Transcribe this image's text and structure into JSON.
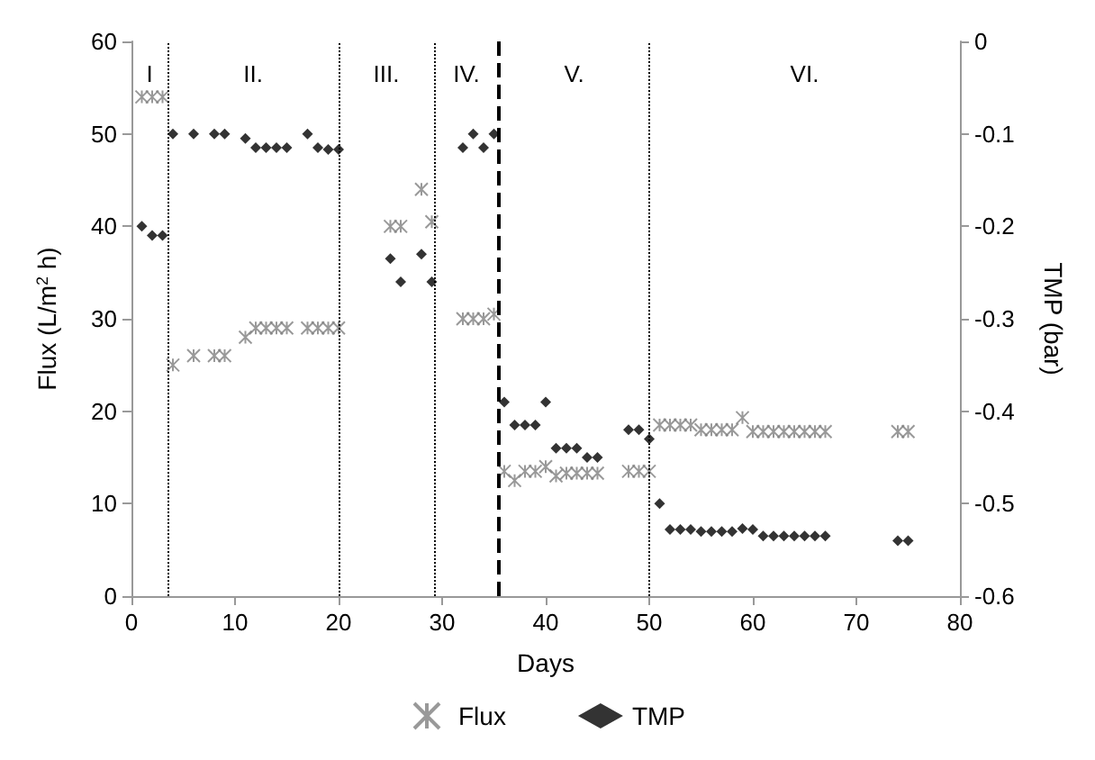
{
  "chart_data": {
    "type": "scatter",
    "xlabel": "Days",
    "ylabel": "Flux (L/m$^{2}$ h)",
    "y2label": "TMP (bar)",
    "xlim": [
      0,
      80
    ],
    "xticks": [
      0,
      10,
      20,
      30,
      40,
      50,
      60,
      70,
      80
    ],
    "ylim": [
      0,
      60
    ],
    "yticks": [
      0,
      10,
      20,
      30,
      40,
      50,
      60
    ],
    "y2lim": [
      -0.6,
      0
    ],
    "y2ticks": [
      -0.6,
      -0.5,
      -0.4,
      -0.3,
      -0.2,
      -0.1,
      0
    ],
    "legend": "bottom",
    "grid": false,
    "series": [
      {
        "name": "Flux",
        "color": "#808080",
        "marker": "cross",
        "x": [
          1,
          2,
          3,
          4,
          6,
          8,
          9,
          11,
          12,
          13,
          14,
          15,
          17,
          18,
          19,
          20,
          25,
          26,
          28,
          29,
          32,
          33,
          34,
          35,
          36,
          37,
          38,
          39,
          40,
          41,
          42,
          43,
          44,
          45,
          48,
          49,
          50,
          51,
          52,
          53,
          54,
          55,
          56,
          57,
          58,
          59,
          60,
          61,
          62,
          63,
          64,
          65,
          66,
          67,
          74,
          75
        ],
        "values": [
          54,
          54,
          54,
          25,
          26,
          26,
          26,
          28,
          29,
          29,
          29,
          29,
          29,
          29,
          29,
          29,
          40,
          40,
          44,
          40.5,
          30,
          30,
          30,
          30.5,
          13.5,
          12.5,
          13.5,
          13.5,
          14,
          13,
          13.3,
          13.3,
          13.3,
          13.3,
          13.5,
          13.5,
          13.5,
          18.5,
          18.5,
          18.5,
          18.5,
          18,
          18,
          18,
          18,
          19.3,
          17.8,
          17.8,
          17.8,
          17.8,
          17.8,
          17.8,
          17.8,
          17.8,
          17.8,
          17.8
        ]
      },
      {
        "name": "TMP",
        "color": "#000000",
        "marker": "diamond",
        "axis": "y2",
        "x": [
          1,
          2,
          3,
          4,
          6,
          8,
          9,
          11,
          12,
          13,
          14,
          15,
          17,
          18,
          19,
          20,
          25,
          26,
          28,
          29,
          32,
          33,
          34,
          35,
          36,
          37,
          38,
          39,
          40,
          41,
          42,
          43,
          44,
          45,
          48,
          49,
          50,
          51,
          52,
          53,
          54,
          55,
          56,
          57,
          58,
          59,
          60,
          61,
          62,
          63,
          64,
          65,
          66,
          67,
          74,
          75
        ],
        "values": [
          -0.2,
          -0.21,
          -0.21,
          -0.1,
          -0.1,
          -0.1,
          -0.1,
          -0.105,
          -0.115,
          -0.115,
          -0.115,
          -0.115,
          -0.1,
          -0.115,
          -0.117,
          -0.117,
          -0.235,
          -0.26,
          -0.23,
          -0.26,
          -0.115,
          -0.1,
          -0.115,
          -0.1,
          -0.39,
          -0.415,
          -0.415,
          -0.415,
          -0.39,
          -0.44,
          -0.44,
          -0.44,
          -0.45,
          -0.45,
          -0.42,
          -0.42,
          -0.43,
          -0.5,
          -0.528,
          -0.528,
          -0.528,
          -0.53,
          -0.53,
          -0.53,
          -0.53,
          -0.527,
          -0.528,
          -0.535,
          -0.535,
          -0.535,
          -0.535,
          -0.535,
          -0.535,
          -0.535,
          -0.54,
          -0.54
        ]
      }
    ],
    "ref_lines": [
      {
        "axis": "x",
        "value": 3.5,
        "line_style": "dotted",
        "color": "#000000"
      },
      {
        "axis": "x",
        "value": 20,
        "line_style": "dotted",
        "color": "#000000"
      },
      {
        "axis": "x",
        "value": 29.2,
        "line_style": "dotted",
        "color": "#000000"
      },
      {
        "axis": "x",
        "value": 35.5,
        "line_style": "dashed",
        "color": "#000000"
      },
      {
        "axis": "x",
        "value": 50,
        "line_style": "dotted",
        "color": "#000000"
      }
    ],
    "annotations": [
      "I",
      "II.",
      "III.",
      "IV.",
      "V.",
      "VI."
    ]
  }
}
